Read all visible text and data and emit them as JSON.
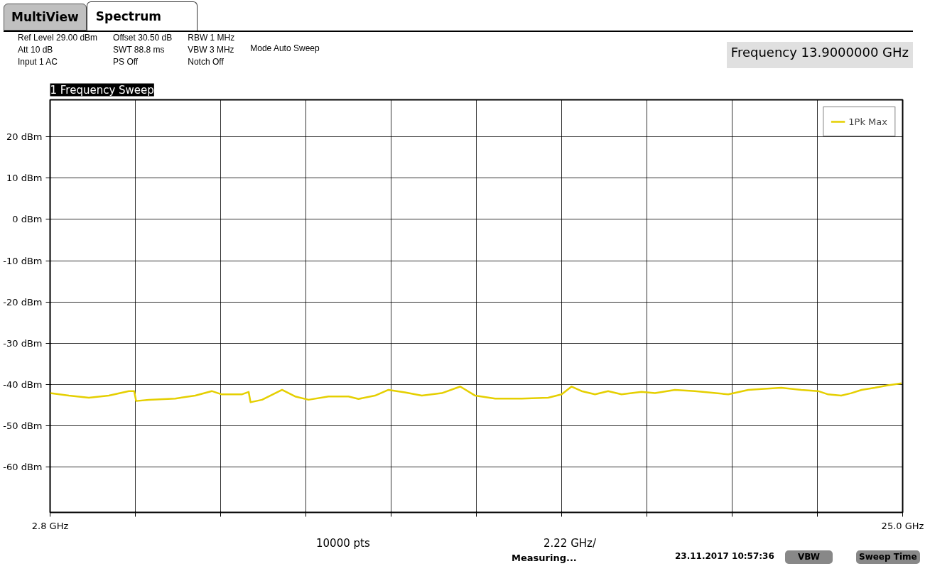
{
  "chart_data": {
    "type": "line",
    "title": "1 Frequency Sweep",
    "x": [
      2.8,
      3.29,
      3.81,
      4.33,
      4.85,
      4.99,
      5.04,
      5.37,
      6.06,
      6.58,
      7.01,
      7.27,
      7.79,
      7.97,
      8.02,
      8.32,
      8.84,
      9.18,
      9.53,
      10.05,
      10.57,
      10.83,
      11.26,
      11.61,
      12.04,
      12.48,
      13.0,
      13.48,
      13.87,
      14.39,
      15.08,
      15.77,
      16.12,
      16.38,
      16.64,
      16.99,
      17.33,
      17.68,
      18.2,
      18.55,
      19.07,
      19.59,
      19.94,
      20.46,
      20.98,
      21.32,
      21.84,
      22.36,
      22.8,
      23.06,
      23.4,
      23.66,
      23.93,
      24.27,
      24.62,
      24.97
    ],
    "series": [
      {
        "name": "1Pk Max",
        "color": "#e5cf00",
        "values": [
          -42.1,
          -42.7,
          -43.2,
          -42.7,
          -41.6,
          -41.6,
          -44.0,
          -43.7,
          -43.4,
          -42.7,
          -41.6,
          -42.4,
          -42.4,
          -41.8,
          -44.3,
          -43.7,
          -41.3,
          -42.9,
          -43.7,
          -42.9,
          -42.9,
          -43.5,
          -42.7,
          -41.3,
          -41.9,
          -42.7,
          -42.1,
          -40.5,
          -42.7,
          -43.4,
          -43.4,
          -43.2,
          -42.4,
          -40.5,
          -41.6,
          -42.4,
          -41.6,
          -42.4,
          -41.8,
          -42.1,
          -41.3,
          -41.6,
          -41.9,
          -42.4,
          -41.3,
          -41.1,
          -40.8,
          -41.3,
          -41.6,
          -42.4,
          -42.7,
          -42.1,
          -41.3,
          -40.8,
          -40.2,
          -39.7
        ]
      }
    ],
    "xlim": [
      2.8,
      25.0
    ],
    "xticks": [
      {
        "value": 2.8,
        "label": "2.8 GHz"
      },
      {
        "value": 5.02,
        "label": null
      },
      {
        "value": 7.24,
        "label": null
      },
      {
        "value": 9.46,
        "label": null
      },
      {
        "value": 11.68,
        "label": null
      },
      {
        "value": 13.9,
        "label": null
      },
      {
        "value": 16.12,
        "label": null
      },
      {
        "value": 18.34,
        "label": null
      },
      {
        "value": 20.56,
        "label": null
      },
      {
        "value": 22.78,
        "label": null
      },
      {
        "value": 25.0,
        "label": "25.0 GHz"
      }
    ],
    "ylim": [
      -71,
      29
    ],
    "yticks": [
      {
        "value": -60,
        "label": "-60 dBm"
      },
      {
        "value": -50,
        "label": "-50 dBm"
      },
      {
        "value": -40,
        "label": "-40 dBm"
      },
      {
        "value": -30,
        "label": "-30 dBm"
      },
      {
        "value": -20,
        "label": "-20 dBm"
      },
      {
        "value": -10,
        "label": "-10 dBm"
      },
      {
        "value": 0,
        "label": "0 dBm"
      },
      {
        "value": 10,
        "label": "10 dBm"
      },
      {
        "value": 20,
        "label": "20 dBm"
      }
    ],
    "grid": true,
    "legend": "top right",
    "marker": "none",
    "line_style": "solid",
    "annotations": [
      "MultiView",
      "Spectrum",
      "Ref Level 29.00 dBm",
      "Att 10 dB",
      "Input 1 AC",
      "Offset 30.50 dB",
      "SWT 88.8 ms",
      "PS Off",
      "RBW 1 MHz",
      "VBW 3 MHz",
      "Notch Off",
      "Mode Auto Sweep",
      "Frequency 13.9000000 GHz",
      "10000 pts",
      "2.22 GHz/",
      "Measuring...",
      "23.11.2017 10:57:36",
      "VBW",
      "Sweep Time"
    ]
  }
}
